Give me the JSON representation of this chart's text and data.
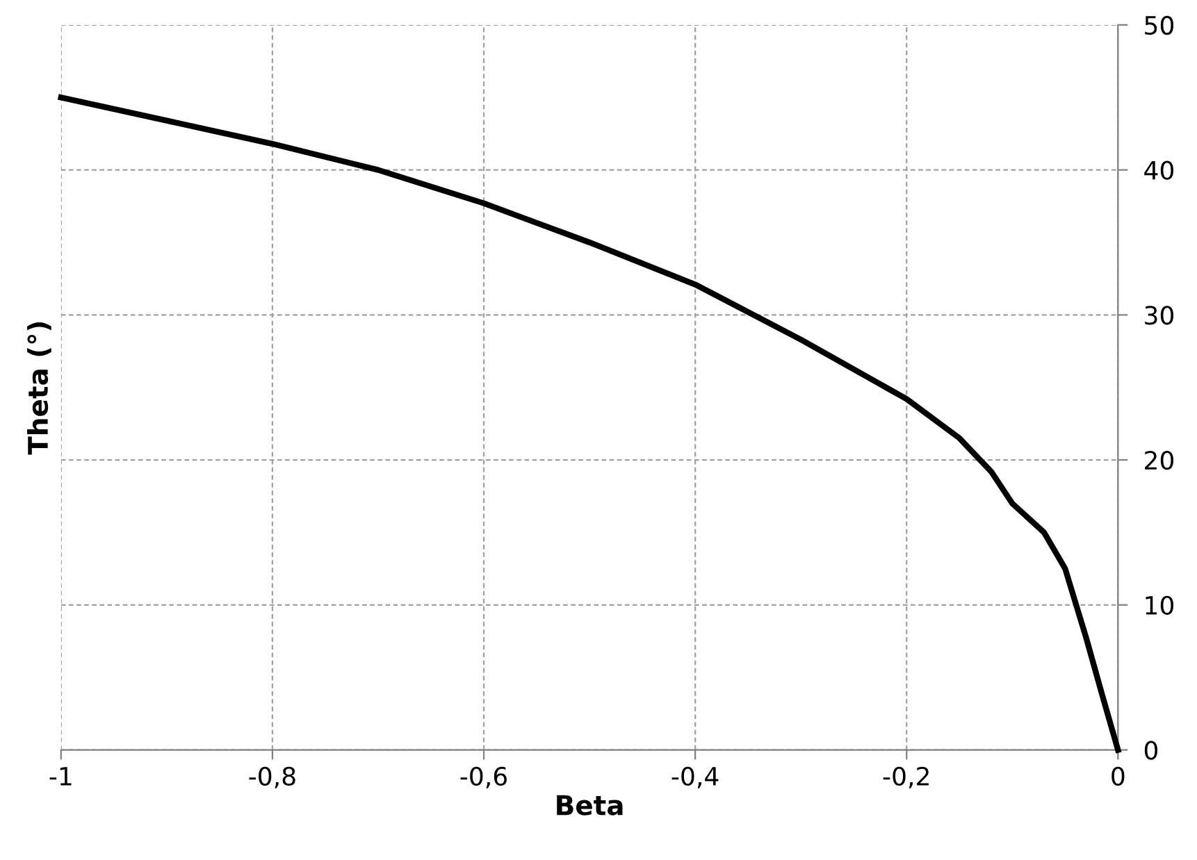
{
  "chart_data": {
    "type": "line",
    "xlabel": "Beta",
    "ylabel": "Theta (°)",
    "series": [
      {
        "color": "#000000",
        "x": [
          -1,
          -0.9,
          -0.8,
          -0.7,
          -0.6,
          -0.5,
          -0.4,
          -0.3,
          -0.2,
          -0.15,
          -0.12,
          -0.1,
          -0.07,
          -0.05,
          -0.03,
          -0.015,
          0
        ],
        "values": [
          45,
          43.4,
          41.8,
          40,
          37.7,
          35,
          32.1,
          28.3,
          24.2,
          21.5,
          19.2,
          17,
          15,
          12.5,
          7.7,
          3.8,
          0
        ]
      }
    ],
    "xlim": [
      -1,
      0
    ],
    "xticks": [
      {
        "value": -1,
        "label": "-1"
      },
      {
        "value": -0.8,
        "label": "-0,8"
      },
      {
        "value": -0.6,
        "label": "-0,6"
      },
      {
        "value": -0.4,
        "label": "-0,4"
      },
      {
        "value": -0.2,
        "label": "-0,2"
      },
      {
        "value": 0,
        "label": "0"
      }
    ],
    "ylim": [
      0,
      50
    ],
    "yticks": [
      0,
      10,
      20,
      30,
      40,
      50
    ],
    "grid": true,
    "marker": "none",
    "line_style": "solid"
  }
}
